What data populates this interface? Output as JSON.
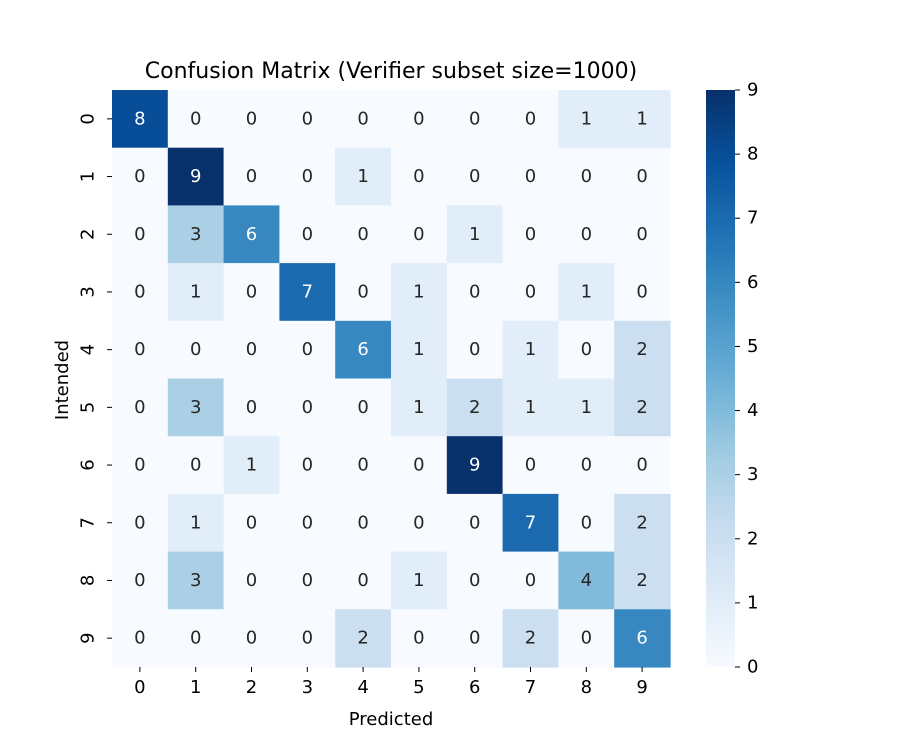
{
  "chart_data": {
    "type": "heatmap",
    "title": "Confusion Matrix (Verifier subset size=1000)",
    "xlabel": "Predicted",
    "ylabel": "Intended",
    "x_categories": [
      "0",
      "1",
      "2",
      "3",
      "4",
      "5",
      "6",
      "7",
      "8",
      "9"
    ],
    "y_categories": [
      "0",
      "1",
      "2",
      "3",
      "4",
      "5",
      "6",
      "7",
      "8",
      "9"
    ],
    "values": [
      [
        8,
        0,
        0,
        0,
        0,
        0,
        0,
        0,
        1,
        1
      ],
      [
        0,
        9,
        0,
        0,
        1,
        0,
        0,
        0,
        0,
        0
      ],
      [
        0,
        3,
        6,
        0,
        0,
        0,
        1,
        0,
        0,
        0
      ],
      [
        0,
        1,
        0,
        7,
        0,
        1,
        0,
        0,
        1,
        0
      ],
      [
        0,
        0,
        0,
        0,
        6,
        1,
        0,
        1,
        0,
        2
      ],
      [
        0,
        3,
        0,
        0,
        0,
        1,
        2,
        1,
        1,
        2
      ],
      [
        0,
        0,
        1,
        0,
        0,
        0,
        9,
        0,
        0,
        0
      ],
      [
        0,
        1,
        0,
        0,
        0,
        0,
        0,
        7,
        0,
        2
      ],
      [
        0,
        3,
        0,
        0,
        0,
        1,
        0,
        0,
        4,
        2
      ],
      [
        0,
        0,
        0,
        0,
        2,
        0,
        0,
        2,
        0,
        6
      ]
    ],
    "colormap": "Blues",
    "vmin": 0,
    "vmax": 9,
    "colorbar_ticks": [
      "0",
      "1",
      "2",
      "3",
      "4",
      "5",
      "6",
      "7",
      "8",
      "9"
    ],
    "colorbar_position": "right",
    "annotations": true,
    "grid": false
  }
}
